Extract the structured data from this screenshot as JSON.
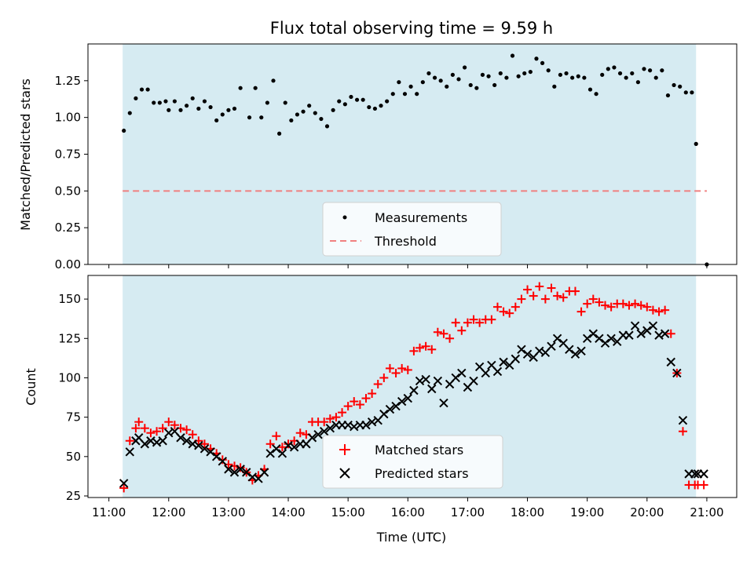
{
  "chart_data": [
    {
      "type": "scatter",
      "title": "Flux total observing time = 9.59 h",
      "ylabel": "Matched/Predicted stars",
      "xlabel": "",
      "xlim": [
        10.65,
        21.5
      ],
      "ylim": [
        0.0,
        1.5
      ],
      "yticks": [
        0.0,
        0.25,
        0.5,
        0.75,
        1.0,
        1.25
      ],
      "ytick_labels": [
        "0.00",
        "0.25",
        "0.50",
        "0.75",
        "1.00",
        "1.25"
      ],
      "shaded_span": [
        11.23,
        20.82
      ],
      "threshold": 0.5,
      "threshold_span": [
        11.23,
        21.0
      ],
      "legend": [
        "Measurements",
        "Threshold"
      ],
      "legend_position": "lower-center",
      "series": [
        {
          "name": "Measurements",
          "x": [
            11.25,
            11.35,
            11.45,
            11.55,
            11.65,
            11.75,
            11.85,
            11.95,
            12.0,
            12.1,
            12.2,
            12.3,
            12.4,
            12.5,
            12.6,
            12.7,
            12.8,
            12.9,
            13.0,
            13.1,
            13.2,
            13.35,
            13.45,
            13.55,
            13.65,
            13.75,
            13.85,
            13.95,
            14.05,
            14.15,
            14.25,
            14.35,
            14.45,
            14.55,
            14.65,
            14.75,
            14.85,
            14.95,
            15.05,
            15.15,
            15.25,
            15.35,
            15.45,
            15.55,
            15.65,
            15.75,
            15.85,
            15.95,
            16.05,
            16.15,
            16.25,
            16.35,
            16.45,
            16.55,
            16.65,
            16.75,
            16.85,
            16.95,
            17.05,
            17.15,
            17.25,
            17.35,
            17.45,
            17.55,
            17.65,
            17.75,
            17.85,
            17.95,
            18.05,
            18.15,
            18.25,
            18.35,
            18.45,
            18.55,
            18.65,
            18.75,
            18.85,
            18.95,
            19.05,
            19.15,
            19.25,
            19.35,
            19.45,
            19.55,
            19.65,
            19.75,
            19.85,
            19.95,
            20.05,
            20.15,
            20.25,
            20.35,
            20.45,
            20.55,
            20.65,
            20.75,
            20.82,
            21.0
          ],
          "values": [
            0.91,
            1.03,
            1.13,
            1.19,
            1.19,
            1.1,
            1.1,
            1.11,
            1.05,
            1.11,
            1.05,
            1.08,
            1.13,
            1.06,
            1.11,
            1.07,
            0.98,
            1.02,
            1.05,
            1.06,
            1.2,
            1.0,
            1.2,
            1.0,
            1.1,
            1.25,
            0.89,
            1.1,
            0.98,
            1.02,
            1.04,
            1.08,
            1.03,
            0.99,
            0.94,
            1.05,
            1.11,
            1.09,
            1.14,
            1.12,
            1.12,
            1.07,
            1.06,
            1.08,
            1.11,
            1.16,
            1.24,
            1.16,
            1.21,
            1.16,
            1.24,
            1.3,
            1.27,
            1.25,
            1.21,
            1.29,
            1.26,
            1.34,
            1.22,
            1.2,
            1.29,
            1.28,
            1.22,
            1.3,
            1.27,
            1.42,
            1.28,
            1.3,
            1.31,
            1.4,
            1.37,
            1.32,
            1.21,
            1.29,
            1.3,
            1.27,
            1.28,
            1.27,
            1.19,
            1.16,
            1.29,
            1.33,
            1.34,
            1.3,
            1.27,
            1.3,
            1.24,
            1.33,
            1.32,
            1.27,
            1.32,
            1.15,
            1.22,
            1.21,
            1.17,
            1.17,
            0.82,
            0.0
          ]
        }
      ]
    },
    {
      "type": "scatter",
      "title": "",
      "ylabel": "Count",
      "xlabel": "Time (UTC)",
      "xlim": [
        10.65,
        21.5
      ],
      "ylim": [
        24,
        165
      ],
      "yticks": [
        25,
        50,
        75,
        100,
        125,
        150
      ],
      "ytick_labels": [
        "25",
        "50",
        "75",
        "100",
        "125",
        "150"
      ],
      "xticks": [
        11,
        12,
        13,
        14,
        15,
        16,
        17,
        18,
        19,
        20,
        21
      ],
      "xtick_labels": [
        "11:00",
        "12:00",
        "13:00",
        "14:00",
        "15:00",
        "16:00",
        "17:00",
        "18:00",
        "19:00",
        "20:00",
        "21:00"
      ],
      "shaded_span": [
        11.23,
        20.82
      ],
      "legend": [
        "Matched stars",
        "Predicted stars"
      ],
      "legend_position": "lower-center",
      "series": [
        {
          "name": "Matched stars",
          "x": [
            11.25,
            11.35,
            11.45,
            11.5,
            11.6,
            11.7,
            11.8,
            11.9,
            12.0,
            12.1,
            12.2,
            12.3,
            12.4,
            12.5,
            12.6,
            12.7,
            12.8,
            12.9,
            13.0,
            13.1,
            13.2,
            13.3,
            13.4,
            13.5,
            13.6,
            13.7,
            13.8,
            13.9,
            14.0,
            14.1,
            14.2,
            14.3,
            14.4,
            14.5,
            14.6,
            14.7,
            14.8,
            14.9,
            15.0,
            15.1,
            15.2,
            15.3,
            15.4,
            15.5,
            15.6,
            15.7,
            15.8,
            15.9,
            16.0,
            16.1,
            16.2,
            16.3,
            16.4,
            16.5,
            16.6,
            16.7,
            16.8,
            16.9,
            17.0,
            17.1,
            17.2,
            17.3,
            17.4,
            17.5,
            17.6,
            17.7,
            17.8,
            17.9,
            18.0,
            18.1,
            18.2,
            18.3,
            18.4,
            18.5,
            18.6,
            18.7,
            18.8,
            18.9,
            19.0,
            19.1,
            19.2,
            19.3,
            19.4,
            19.5,
            19.6,
            19.7,
            19.8,
            19.9,
            20.0,
            20.1,
            20.2,
            20.3,
            20.4,
            20.5,
            20.6,
            20.7,
            20.8,
            20.85,
            20.95
          ],
          "values": [
            30,
            60,
            68,
            72,
            68,
            65,
            66,
            68,
            72,
            70,
            68,
            67,
            64,
            60,
            58,
            55,
            52,
            48,
            45,
            44,
            43,
            40,
            35,
            38,
            42,
            58,
            63,
            56,
            58,
            60,
            65,
            64,
            72,
            72,
            72,
            74,
            75,
            78,
            82,
            85,
            83,
            87,
            90,
            96,
            100,
            106,
            103,
            106,
            105,
            117,
            119,
            120,
            118,
            129,
            128,
            125,
            135,
            130,
            135,
            137,
            135,
            137,
            137,
            145,
            142,
            141,
            145,
            150,
            156,
            152,
            158,
            150,
            157,
            152,
            151,
            155,
            155,
            142,
            147,
            150,
            148,
            146,
            145,
            147,
            147,
            146,
            147,
            146,
            145,
            143,
            142,
            143,
            128,
            103,
            66,
            32,
            32,
            32,
            32
          ],
          "marker": "+",
          "color": "#ff0000"
        },
        {
          "name": "Predicted stars",
          "x": [
            11.25,
            11.35,
            11.45,
            11.5,
            11.6,
            11.7,
            11.8,
            11.9,
            12.0,
            12.1,
            12.2,
            12.3,
            12.4,
            12.5,
            12.6,
            12.7,
            12.8,
            12.9,
            13.0,
            13.1,
            13.2,
            13.3,
            13.4,
            13.5,
            13.6,
            13.7,
            13.8,
            13.9,
            14.0,
            14.1,
            14.2,
            14.3,
            14.4,
            14.5,
            14.6,
            14.7,
            14.8,
            14.9,
            15.0,
            15.1,
            15.2,
            15.3,
            15.4,
            15.5,
            15.6,
            15.7,
            15.8,
            15.9,
            16.0,
            16.1,
            16.2,
            16.3,
            16.4,
            16.5,
            16.6,
            16.7,
            16.8,
            16.9,
            17.0,
            17.1,
            17.2,
            17.3,
            17.4,
            17.5,
            17.6,
            17.7,
            17.8,
            17.9,
            18.0,
            18.1,
            18.2,
            18.3,
            18.4,
            18.5,
            18.6,
            18.7,
            18.8,
            18.9,
            19.0,
            19.1,
            19.2,
            19.3,
            19.4,
            19.5,
            19.6,
            19.7,
            19.8,
            19.9,
            20.0,
            20.1,
            20.2,
            20.3,
            20.4,
            20.5,
            20.6,
            20.7,
            20.8,
            20.85,
            20.95
          ],
          "values": [
            33,
            53,
            60,
            62,
            58,
            60,
            59,
            60,
            65,
            66,
            62,
            60,
            58,
            57,
            55,
            53,
            50,
            47,
            42,
            40,
            42,
            40,
            37,
            36,
            40,
            52,
            55,
            52,
            57,
            56,
            58,
            58,
            62,
            64,
            66,
            68,
            70,
            70,
            70,
            69,
            70,
            70,
            72,
            73,
            77,
            80,
            82,
            85,
            87,
            92,
            98,
            99,
            93,
            98,
            84,
            96,
            100,
            103,
            94,
            98,
            107,
            103,
            108,
            104,
            110,
            108,
            112,
            118,
            115,
            113,
            117,
            116,
            120,
            125,
            122,
            118,
            115,
            117,
            125,
            128,
            125,
            122,
            125,
            123,
            127,
            127,
            133,
            128,
            130,
            133,
            127,
            128,
            110,
            103,
            73,
            39,
            39,
            39,
            39
          ],
          "marker": "x",
          "color": "#000000"
        }
      ]
    }
  ]
}
